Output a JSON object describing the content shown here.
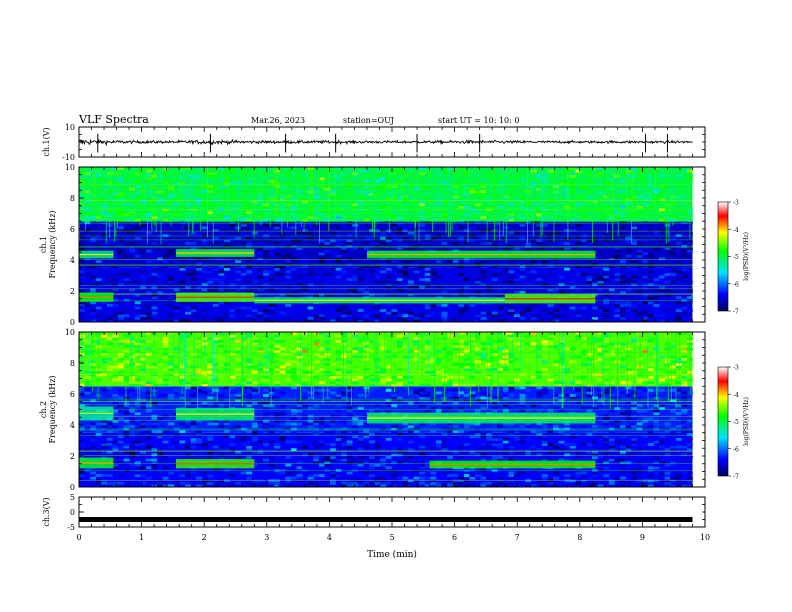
{
  "header": {
    "title": "VLF Spectra",
    "date": "Mar.26, 2023",
    "station": "station=OUJ",
    "start": "start  UT =   10: 10: 0"
  },
  "chart_data": [
    {
      "type": "line",
      "panel": "ch1-waveform",
      "ylabel": "ch.1(V)",
      "ylim": [
        -10,
        10
      ],
      "yticks": [
        "10",
        "-10"
      ],
      "xlim": [
        0,
        10
      ],
      "data_extent_min": [
        0,
        9.8
      ],
      "amplitude_envelope": {
        "t": [
          0,
          0.3,
          0.6,
          1.0,
          1.5,
          2.0,
          2.4,
          3.0,
          4.0,
          4.5,
          5.5,
          6.3,
          7.0,
          8.0,
          9.0,
          9.8
        ],
        "v": [
          2.5,
          1.6,
          1.2,
          0.9,
          0.9,
          1.5,
          1.2,
          0.9,
          1.0,
          0.9,
          0.8,
          1.2,
          0.9,
          0.8,
          0.9,
          0.8
        ]
      },
      "spikes_min": [
        0.3,
        2.1,
        3.3,
        4.1,
        5.4,
        6.4,
        9.05,
        9.4
      ]
    },
    {
      "type": "heatmap",
      "panel": "ch1-spectrogram",
      "ylabel": "ch.1\nFrequency (kHz)",
      "ylim": [
        0,
        10
      ],
      "yticks": [
        "0",
        "2",
        "4",
        "6",
        "8",
        "10"
      ],
      "xlim": [
        0,
        10
      ],
      "data_extent_min": [
        0,
        9.8
      ],
      "colorbar": {
        "label": "log(PSD)(V²/Hz)",
        "range": [
          -7,
          -3
        ],
        "ticks": [
          "-3",
          "-4",
          "-5",
          "-6",
          "-7"
        ]
      },
      "background_levels": [
        {
          "f": [
            0,
            3.5
          ],
          "level": -6.5
        },
        {
          "f": [
            3.5,
            6.5
          ],
          "level": -6.6
        },
        {
          "f": [
            6.5,
            10
          ],
          "level": -5.0
        }
      ],
      "emission_bands": [
        {
          "t": [
            0,
            0.55
          ],
          "f": [
            1.3,
            1.9
          ],
          "level": -4.2
        },
        {
          "t": [
            1.55,
            2.8
          ],
          "f": [
            1.3,
            1.9
          ],
          "level": -4.0
        },
        {
          "t": [
            2.8,
            6.8
          ],
          "f": [
            1.2,
            1.6
          ],
          "level": -4.5
        },
        {
          "t": [
            6.8,
            8.25
          ],
          "f": [
            1.2,
            1.8
          ],
          "level": -4.0
        },
        {
          "t": [
            0,
            0.55
          ],
          "f": [
            4.1,
            4.6
          ],
          "level": -4.6
        },
        {
          "t": [
            1.55,
            2.8
          ],
          "f": [
            4.2,
            4.7
          ],
          "level": -4.4
        },
        {
          "t": [
            4.6,
            8.25
          ],
          "f": [
            4.1,
            4.6
          ],
          "level": -4.3
        }
      ]
    },
    {
      "type": "heatmap",
      "panel": "ch2-spectrogram",
      "ylabel": "ch.2\nFrequency (kHz)",
      "ylim": [
        0,
        10
      ],
      "yticks": [
        "0",
        "2",
        "4",
        "6",
        "8",
        "10"
      ],
      "xlim": [
        0,
        10
      ],
      "data_extent_min": [
        0,
        9.8
      ],
      "colorbar": {
        "label": "log(PSD)(V²/Hz)",
        "range": [
          -7,
          -3
        ],
        "ticks": [
          "-3",
          "-4",
          "-5",
          "-6",
          "-7"
        ]
      },
      "background_levels": [
        {
          "f": [
            0,
            3.5
          ],
          "level": -6.4
        },
        {
          "f": [
            3.5,
            6.5
          ],
          "level": -6.3
        },
        {
          "f": [
            6.5,
            10
          ],
          "level": -4.6
        }
      ],
      "emission_bands": [
        {
          "t": [
            0,
            0.55
          ],
          "f": [
            1.2,
            1.9
          ],
          "level": -4.3
        },
        {
          "t": [
            1.55,
            2.8
          ],
          "f": [
            1.2,
            1.8
          ],
          "level": -4.1
        },
        {
          "t": [
            5.6,
            8.25
          ],
          "f": [
            1.2,
            1.7
          ],
          "level": -4.2
        },
        {
          "t": [
            0,
            0.55
          ],
          "f": [
            4.3,
            5.2
          ],
          "level": -4.7
        },
        {
          "t": [
            1.55,
            2.8
          ],
          "f": [
            4.3,
            5.1
          ],
          "level": -4.5
        },
        {
          "t": [
            4.6,
            8.25
          ],
          "f": [
            4.1,
            4.8
          ],
          "level": -4.5
        }
      ]
    },
    {
      "type": "line",
      "panel": "ch3-waveform",
      "ylabel": "ch.3(V)",
      "ylim": [
        -5,
        5
      ],
      "yticks": [
        "5",
        "0",
        "-5"
      ],
      "xlim": [
        0,
        10
      ],
      "xlabel": "Time (min)",
      "xticks": [
        "0",
        "1",
        "2",
        "3",
        "4",
        "5",
        "6",
        "7",
        "8",
        "9",
        "10"
      ],
      "data_extent_min": [
        0,
        9.8
      ],
      "constant_value": -2.5
    }
  ]
}
